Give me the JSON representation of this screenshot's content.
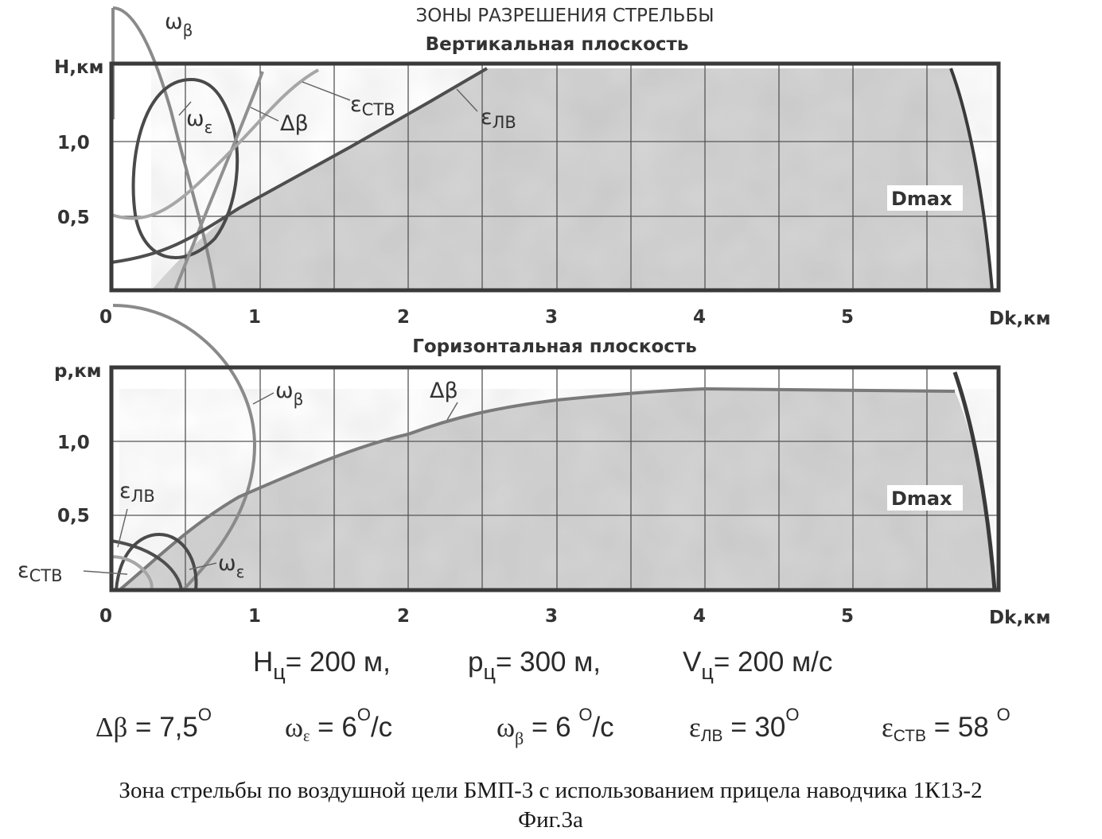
{
  "title": "ЗОНЫ РАЗРЕШЕНИЯ СТРЕЛЬБЫ",
  "vertical": {
    "subtitle": "Вертикальная плоскость",
    "ylabel": "Н,км",
    "yticks": [
      "1,0",
      "0,5"
    ],
    "xticks": [
      "0",
      "1",
      "2",
      "3",
      "4",
      "5"
    ],
    "xlabel": "Dk,км",
    "dmax": "Dmax",
    "curves": {
      "omega_beta": {
        "sym": "ω",
        "sub": "β"
      },
      "omega_eps": {
        "sym": "ω",
        "sub": "ε"
      },
      "delta_beta": {
        "sym": "Δβ"
      },
      "eps_stv": {
        "sym": "ε",
        "sub": "СТВ"
      },
      "eps_lv": {
        "sym": "ε",
        "sub": "ЛВ"
      }
    }
  },
  "horizontal": {
    "subtitle": "Горизонтальная плоскость",
    "ylabel": "р,км",
    "yticks": [
      "1,0",
      "0,5"
    ],
    "xticks": [
      "0",
      "1",
      "2",
      "3",
      "4",
      "5"
    ],
    "xlabel": "Dk,км",
    "dmax": "Dmax",
    "curves": {
      "omega_beta": {
        "sym": "ω",
        "sub": "β"
      },
      "delta_beta": {
        "sym": "Δβ"
      },
      "eps_lv": {
        "sym": "ε",
        "sub": "ЛВ"
      },
      "eps_stv": {
        "sym": "ε",
        "sub": "СТВ"
      },
      "omega_eps": {
        "sym": "ω",
        "sub": "ε"
      }
    }
  },
  "params": {
    "line1": {
      "h": {
        "sym": "Н",
        "sub": "ц",
        "value": "= 200 м,"
      },
      "p": {
        "sym": "р",
        "sub": "ц",
        "value": "= 300 м,"
      },
      "v": {
        "sym": "V",
        "sub": "ц",
        "value": "= 200 м/с"
      }
    },
    "line2": {
      "delta_beta": {
        "sym": "Δβ",
        "value": " = 7,5",
        "sup": "О"
      },
      "omega_eps": {
        "sym": "ω",
        "sub": "ε",
        "value": " = 6",
        "sup": "О",
        "tail": "/с"
      },
      "omega_beta": {
        "sym": "ω",
        "sub": "β",
        "value": " = 6 ",
        "sup": "О",
        "tail": "/с"
      },
      "eps_lv": {
        "sym": "ε",
        "sub": "ЛВ",
        "value": " = 30",
        "sup": "О"
      },
      "eps_stv": {
        "sym": "ε",
        "sub": "СТВ",
        "value": " = 58 ",
        "sup": "О"
      }
    }
  },
  "caption": {
    "line1": "Зона стрельбы по воздушной цели БМП-3 с использованием прицела наводчика 1К13-2",
    "line2": "Фиг.3а"
  },
  "colors": {
    "zone_fill": "#c8c8c8",
    "frame": "#3a3a3a",
    "grid": "#555555",
    "curve_dark": "#4a4a4a",
    "curve_mid": "#7a7a7a",
    "curve_light": "#a8a8a8"
  }
}
